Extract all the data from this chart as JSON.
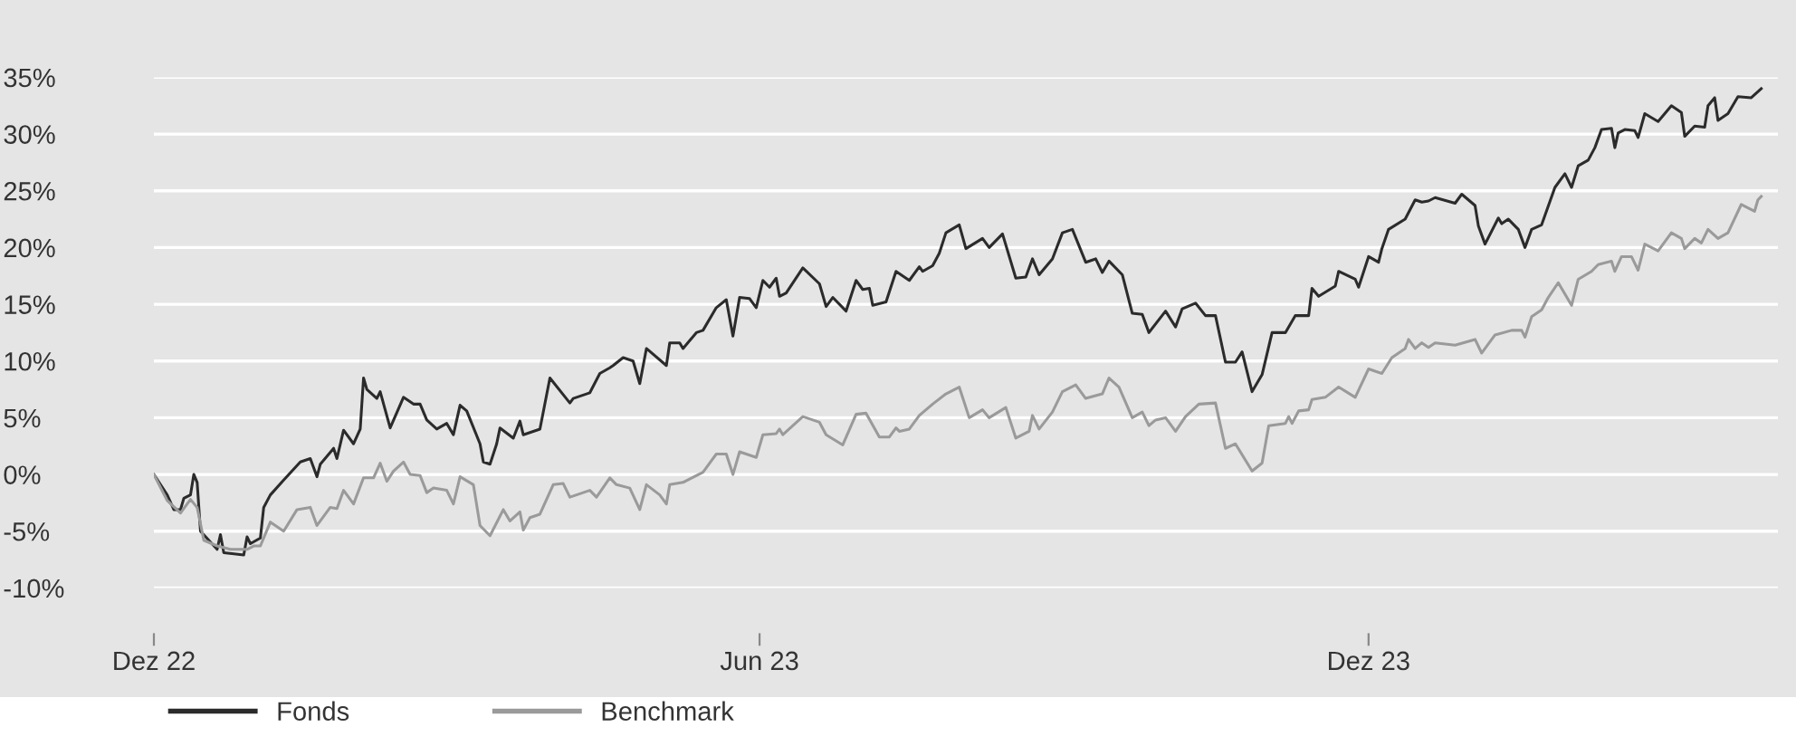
{
  "chart_data": {
    "type": "line",
    "xlim": [
      "2022-12-01",
      "2024-04-02"
    ],
    "xticks": [
      {
        "value": "2022-12-01",
        "label": "Dez 22"
      },
      {
        "value": "2023-06-01",
        "label": "Jun 23"
      },
      {
        "value": "2023-12-01",
        "label": "Dez 23"
      }
    ],
    "ylim": [
      -10,
      35
    ],
    "yticks": [
      {
        "value": -10,
        "label": "-10%"
      },
      {
        "value": -5,
        "label": "-5%"
      },
      {
        "value": 0,
        "label": "0%"
      },
      {
        "value": 5,
        "label": "5%"
      },
      {
        "value": 10,
        "label": "10%"
      },
      {
        "value": 15,
        "label": "15%"
      },
      {
        "value": 20,
        "label": "20%"
      },
      {
        "value": 25,
        "label": "25%"
      },
      {
        "value": 30,
        "label": "30%"
      },
      {
        "value": 35,
        "label": "35%"
      }
    ],
    "grid": "y",
    "legend": "bottom left",
    "marker": "none",
    "line_style": "solid",
    "series": [
      {
        "name": "Fonds",
        "color": "#2b2b2b",
        "x": [
          "2022-12-01",
          "2022-12-05",
          "2022-12-07",
          "2022-12-09",
          "2022-12-10",
          "2022-12-12",
          "2022-12-13",
          "2022-12-14",
          "2022-12-15",
          "2022-12-20",
          "2022-12-21",
          "2022-12-22",
          "2022-12-28",
          "2022-12-29",
          "2022-12-30",
          "2023-01-02",
          "2023-01-03",
          "2023-01-05",
          "2023-01-09",
          "2023-01-14",
          "2023-01-17",
          "2023-01-19",
          "2023-01-20",
          "2023-01-24",
          "2023-01-25",
          "2023-01-27",
          "2023-01-30",
          "2023-02-01",
          "2023-02-02",
          "2023-02-03",
          "2023-02-06",
          "2023-02-07",
          "2023-02-10",
          "2023-02-14",
          "2023-02-17",
          "2023-02-19",
          "2023-02-21",
          "2023-02-24",
          "2023-02-27",
          "2023-03-01",
          "2023-03-03",
          "2023-03-05",
          "2023-03-09",
          "2023-03-10",
          "2023-03-12",
          "2023-03-14",
          "2023-03-15",
          "2023-03-19",
          "2023-03-21",
          "2023-03-22",
          "2023-03-27",
          "2023-03-30",
          "2023-04-05",
          "2023-04-06",
          "2023-04-11",
          "2023-04-14",
          "2023-04-17",
          "2023-04-18",
          "2023-04-21",
          "2023-04-24",
          "2023-04-26",
          "2023-04-28",
          "2023-05-04",
          "2023-05-05",
          "2023-05-08",
          "2023-05-09",
          "2023-05-13",
          "2023-05-15",
          "2023-05-19",
          "2023-05-22",
          "2023-05-24",
          "2023-05-26",
          "2023-05-29",
          "2023-05-31",
          "2023-06-02",
          "2023-06-04",
          "2023-06-06",
          "2023-06-07",
          "2023-06-09",
          "2023-06-14",
          "2023-06-19",
          "2023-06-21",
          "2023-06-23",
          "2023-06-27",
          "2023-06-30",
          "2023-07-02",
          "2023-07-04",
          "2023-07-05",
          "2023-07-09",
          "2023-07-12",
          "2023-07-16",
          "2023-07-19",
          "2023-07-20",
          "2023-07-23",
          "2023-07-25",
          "2023-07-27",
          "2023-07-31",
          "2023-08-02",
          "2023-08-07",
          "2023-08-09",
          "2023-08-13",
          "2023-08-17",
          "2023-08-20",
          "2023-08-22",
          "2023-08-24",
          "2023-08-28",
          "2023-08-31",
          "2023-09-03",
          "2023-09-07",
          "2023-09-10",
          "2023-09-12",
          "2023-09-14",
          "2023-09-18",
          "2023-09-21",
          "2023-09-24",
          "2023-09-26",
          "2023-10-01",
          "2023-10-04",
          "2023-10-06",
          "2023-10-10",
          "2023-10-13",
          "2023-10-16",
          "2023-10-19",
          "2023-10-22",
          "2023-10-24",
          "2023-10-27",
          "2023-10-30",
          "2023-11-02",
          "2023-11-06",
          "2023-11-09",
          "2023-11-13",
          "2023-11-14",
          "2023-11-16",
          "2023-11-21",
          "2023-11-22",
          "2023-11-27",
          "2023-11-28",
          "2023-12-01",
          "2023-12-04",
          "2023-12-05",
          "2023-12-07",
          "2023-12-12",
          "2023-12-15",
          "2023-12-17",
          "2023-12-19",
          "2023-12-21",
          "2023-12-27",
          "2023-12-29",
          "2024-01-02",
          "2024-01-03",
          "2024-01-05",
          "2024-01-09",
          "2024-01-10",
          "2024-01-12",
          "2024-01-15",
          "2024-01-17",
          "2024-01-19",
          "2024-01-22",
          "2024-01-26",
          "2024-01-29",
          "2024-01-31",
          "2024-02-02",
          "2024-02-05",
          "2024-02-07",
          "2024-02-09",
          "2024-02-12",
          "2024-02-13",
          "2024-02-14",
          "2024-02-16",
          "2024-02-19",
          "2024-02-20",
          "2024-02-22",
          "2024-02-26",
          "2024-03-01",
          "2024-03-04",
          "2024-03-05",
          "2024-03-08",
          "2024-03-11",
          "2024-03-12",
          "2024-03-14",
          "2024-03-15",
          "2024-03-18",
          "2024-03-21",
          "2024-03-25",
          "2024-03-28"
        ],
        "values": [
          0,
          -1.8,
          -3.1,
          -3.1,
          -2.1,
          -1.8,
          0,
          -0.7,
          -5.0,
          -6.6,
          -5.3,
          -6.9,
          -7.1,
          -5.5,
          -6.1,
          -5.6,
          -2.9,
          -1.8,
          -0.5,
          1.1,
          1.4,
          -0.2,
          0.9,
          2.3,
          1.4,
          3.9,
          2.7,
          4.0,
          8.5,
          7.5,
          6.7,
          7.3,
          4.1,
          6.8,
          6.2,
          6.2,
          4.8,
          4.0,
          4.5,
          3.5,
          6.1,
          5.6,
          2.7,
          1.1,
          0.9,
          2.7,
          4.1,
          3.2,
          4.7,
          3.5,
          4.0,
          8.5,
          6.3,
          6.7,
          7.2,
          8.9,
          9.4,
          9.6,
          10.3,
          10.0,
          8.0,
          11.1,
          9.6,
          11.6,
          11.6,
          11.1,
          12.5,
          12.7,
          14.7,
          15.4,
          12.2,
          15.6,
          15.5,
          14.7,
          17.1,
          16.5,
          17.3,
          15.7,
          16.0,
          18.2,
          16.8,
          14.8,
          15.6,
          14.4,
          17.1,
          16.3,
          16.4,
          14.9,
          15.2,
          17.9,
          17.1,
          18.3,
          17.9,
          18.4,
          19.5,
          21.3,
          22.0,
          19.9,
          20.8,
          20.0,
          21.2,
          17.3,
          17.4,
          19.0,
          17.6,
          19.0,
          21.3,
          21.6,
          18.7,
          19.0,
          17.8,
          18.8,
          17.6,
          14.2,
          14.1,
          12.5,
          14.4,
          13.0,
          14.6,
          15.1,
          14.0,
          14.0,
          9.9,
          9.9,
          10.8,
          7.3,
          8.8,
          12.5,
          12.5,
          14.0,
          14.0,
          16.4,
          15.7,
          16.6,
          17.9,
          17.2,
          16.5,
          19.2,
          18.7,
          19.9,
          21.6,
          22.5,
          24.2,
          24.0,
          24.1,
          24.4,
          23.9,
          24.7,
          23.7,
          21.9,
          20.3,
          22.6,
          22.1,
          22.5,
          21.6,
          20.0,
          21.6,
          22.0,
          25.3,
          26.5,
          25.3,
          27.2,
          27.7,
          28.8,
          30.4,
          30.5,
          28.8,
          30.1,
          30.4,
          30.3,
          29.7,
          31.8,
          31.1,
          32.5,
          31.9,
          29.8,
          30.7,
          30.6,
          32.5,
          33.2,
          31.2,
          31.8,
          33.3,
          33.2,
          34.0
        ]
      },
      {
        "name": "Benchmark",
        "color": "#9a9a9a",
        "x": [
          "2022-12-01",
          "2022-12-05",
          "2022-12-09",
          "2022-12-12",
          "2022-12-14",
          "2022-12-16",
          "2022-12-20",
          "2022-12-24",
          "2022-12-29",
          "2022-12-31",
          "2023-01-02",
          "2023-01-05",
          "2023-01-09",
          "2023-01-13",
          "2023-01-17",
          "2023-01-19",
          "2023-01-23",
          "2023-01-25",
          "2023-01-27",
          "2023-01-30",
          "2023-02-02",
          "2023-02-05",
          "2023-02-07",
          "2023-02-09",
          "2023-02-11",
          "2023-02-14",
          "2023-02-16",
          "2023-02-19",
          "2023-02-21",
          "2023-02-23",
          "2023-02-27",
          "2023-03-01",
          "2023-03-03",
          "2023-03-07",
          "2023-03-09",
          "2023-03-12",
          "2023-03-16",
          "2023-03-18",
          "2023-03-21",
          "2023-03-22",
          "2023-03-24",
          "2023-03-27",
          "2023-03-31",
          "2023-04-03",
          "2023-04-05",
          "2023-04-11",
          "2023-04-13",
          "2023-04-17",
          "2023-04-19",
          "2023-04-23",
          "2023-04-26",
          "2023-04-28",
          "2023-05-02",
          "2023-05-04",
          "2023-05-05",
          "2023-05-09",
          "2023-05-13",
          "2023-05-15",
          "2023-05-19",
          "2023-05-22",
          "2023-05-24",
          "2023-05-26",
          "2023-05-31",
          "2023-06-02",
          "2023-06-06",
          "2023-06-07",
          "2023-06-08",
          "2023-06-14",
          "2023-06-19",
          "2023-06-21",
          "2023-06-26",
          "2023-06-30",
          "2023-07-03",
          "2023-07-07",
          "2023-07-10",
          "2023-07-12",
          "2023-07-13",
          "2023-07-16",
          "2023-07-19",
          "2023-07-23",
          "2023-07-27",
          "2023-07-31",
          "2023-08-03",
          "2023-08-07",
          "2023-08-09",
          "2023-08-14",
          "2023-08-17",
          "2023-08-21",
          "2023-08-22",
          "2023-08-24",
          "2023-08-28",
          "2023-08-31",
          "2023-09-04",
          "2023-09-07",
          "2023-09-12",
          "2023-09-14",
          "2023-09-17",
          "2023-09-21",
          "2023-09-24",
          "2023-09-26",
          "2023-09-28",
          "2023-10-01",
          "2023-10-04",
          "2023-10-07",
          "2023-10-11",
          "2023-10-16",
          "2023-10-19",
          "2023-10-22",
          "2023-10-27",
          "2023-10-30",
          "2023-11-01",
          "2023-11-06",
          "2023-11-07",
          "2023-11-08",
          "2023-11-10",
          "2023-11-13",
          "2023-11-14",
          "2023-11-18",
          "2023-11-22",
          "2023-11-27",
          "2023-12-01",
          "2023-12-05",
          "2023-12-08",
          "2023-12-12",
          "2023-12-13",
          "2023-12-15",
          "2023-12-17",
          "2023-12-19",
          "2023-12-21",
          "2023-12-27",
          "2024-01-02",
          "2024-01-04",
          "2024-01-08",
          "2024-01-13",
          "2024-01-16",
          "2024-01-17",
          "2024-01-19",
          "2024-01-22",
          "2024-01-24",
          "2024-01-27",
          "2024-01-31",
          "2024-02-02",
          "2024-02-06",
          "2024-02-08",
          "2024-02-12",
          "2024-02-13",
          "2024-02-15",
          "2024-02-18",
          "2024-02-20",
          "2024-02-22",
          "2024-02-26",
          "2024-03-01",
          "2024-03-04",
          "2024-03-05",
          "2024-03-08",
          "2024-03-10",
          "2024-03-12",
          "2024-03-15",
          "2024-03-18",
          "2024-03-22",
          "2024-03-26",
          "2024-03-27",
          "2024-03-28"
        ],
        "values": [
          0,
          -2.3,
          -3.4,
          -2.2,
          -2.9,
          -5.8,
          -6.3,
          -6.6,
          -6.6,
          -6.3,
          -6.3,
          -4.2,
          -5.0,
          -3.1,
          -2.9,
          -4.5,
          -2.9,
          -3.0,
          -1.4,
          -2.6,
          -0.3,
          -0.3,
          1.0,
          -0.6,
          0.3,
          1.1,
          0,
          -0.1,
          -1.6,
          -1.2,
          -1.4,
          -2.6,
          -0.2,
          -0.9,
          -4.5,
          -5.4,
          -3.1,
          -4.1,
          -3.3,
          -4.9,
          -3.8,
          -3.5,
          -0.9,
          -0.8,
          -2.0,
          -1.4,
          -2.0,
          -0.3,
          -0.9,
          -1.2,
          -3.1,
          -0.9,
          -1.8,
          -2.6,
          -0.9,
          -0.7,
          -0.1,
          0.2,
          1.8,
          1.8,
          0.0,
          2.0,
          1.5,
          3.5,
          3.6,
          4.0,
          3.5,
          5.1,
          4.6,
          3.5,
          2.6,
          5.3,
          5.4,
          3.3,
          3.3,
          4.1,
          3.8,
          4.0,
          5.2,
          6.2,
          7.1,
          7.7,
          5.0,
          5.7,
          5.0,
          5.9,
          3.2,
          3.8,
          5.2,
          4.0,
          5.5,
          7.3,
          7.9,
          6.7,
          7.1,
          8.5,
          7.7,
          5.0,
          5.5,
          4.3,
          4.8,
          5.0,
          3.8,
          5.1,
          6.2,
          6.3,
          2.3,
          2.7,
          0.3,
          1.0,
          4.3,
          4.5,
          5.1,
          4.5,
          5.6,
          5.7,
          6.6,
          6.8,
          7.7,
          6.8,
          9.3,
          8.9,
          10.3,
          11.1,
          11.9,
          11.1,
          11.6,
          11.2,
          11.6,
          11.4,
          11.9,
          10.7,
          12.3,
          12.7,
          12.7,
          12.1,
          13.9,
          14.5,
          15.6,
          16.9,
          14.9,
          17.2,
          17.9,
          18.5,
          18.8,
          17.9,
          19.2,
          19.2,
          18.0,
          20.3,
          19.7,
          21.3,
          20.8,
          19.9,
          20.8,
          20.4,
          21.6,
          20.8,
          21.3,
          23.8,
          23.2,
          24.2,
          24.5
        ]
      }
    ]
  }
}
